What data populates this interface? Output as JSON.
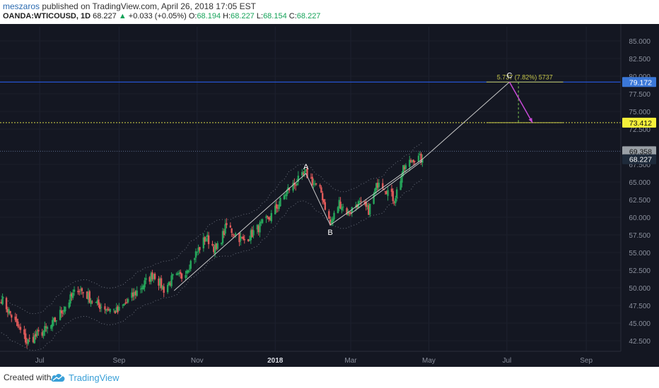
{
  "header": {
    "author": "meszaros",
    "published_text": "published on TradingView.com, April 26, 2018 17:05 EST",
    "symbol": "OANDA:WTICOUSD, 1D",
    "last": "68.227",
    "change_arrow": "▲",
    "change": "+0.033 (+0.05%)",
    "o_label": "O:",
    "o_value": "68.194",
    "h_label": "H:",
    "h_value": "68.227",
    "l_label": "L:",
    "l_value": "68.154",
    "c_label": "C:",
    "c_value": "68.227"
  },
  "footer": {
    "created_with": "Created with",
    "brand": "TradingView",
    "brand_icon": "tradingview-cloud-icon"
  },
  "chart_data": {
    "type": "candlestick",
    "y_axis": {
      "range": [
        41.0,
        87.0
      ],
      "ticks": [
        42.5,
        45.0,
        47.5,
        50.0,
        52.5,
        55.0,
        57.5,
        60.0,
        62.5,
        65.0,
        67.5,
        72.5,
        75.0,
        77.5,
        80.0,
        82.5,
        85.0
      ],
      "tick_labels": [
        "42.500",
        "45.000",
        "47.500",
        "50.000",
        "52.500",
        "55.000",
        "57.500",
        "60.000",
        "62.500",
        "65.000",
        "67.500",
        "72.500",
        "75.000",
        "77.500",
        "80.000",
        "82.500",
        "85.000"
      ]
    },
    "x_axis": {
      "range": [
        "2018-05-31",
        "2018-09-28"
      ],
      "labels": [
        {
          "date": "2017-07-01",
          "text": "Jul",
          "bold": false
        },
        {
          "date": "2017-09-01",
          "text": "Sep",
          "bold": false
        },
        {
          "date": "2017-11-01",
          "text": "Nov",
          "bold": false
        },
        {
          "date": "2018-01-01",
          "text": "2018",
          "bold": true
        },
        {
          "date": "2018-03-01",
          "text": "Mar",
          "bold": false
        },
        {
          "date": "2018-05-01",
          "text": "May",
          "bold": false
        },
        {
          "date": "2018-07-01",
          "text": "Jul",
          "bold": false
        },
        {
          "date": "2018-09-01",
          "text": "Sep",
          "bold": false
        }
      ]
    },
    "price_path": [
      [
        "2017-06-01",
        48.5
      ],
      [
        "2017-06-21",
        42.3
      ],
      [
        "2017-07-10",
        44.6
      ],
      [
        "2017-07-31",
        50.0
      ],
      [
        "2017-08-15",
        47.6
      ],
      [
        "2017-08-31",
        46.6
      ],
      [
        "2017-09-28",
        52.0
      ],
      [
        "2017-10-06",
        49.8
      ],
      [
        "2017-10-13",
        51.4
      ],
      [
        "2017-10-20",
        51.6
      ],
      [
        "2017-11-08",
        57.2
      ],
      [
        "2017-11-16",
        55.3
      ],
      [
        "2017-11-24",
        58.8
      ],
      [
        "2017-12-07",
        56.6
      ],
      [
        "2017-12-28",
        60.0
      ],
      [
        "2018-01-11",
        63.9
      ],
      [
        "2018-01-25",
        66.2
      ],
      [
        "2018-02-06",
        63.5
      ],
      [
        "2018-02-13",
        58.9
      ],
      [
        "2018-02-20",
        62.1
      ],
      [
        "2018-02-27",
        60.6
      ],
      [
        "2018-03-06",
        62.0
      ],
      [
        "2018-03-15",
        61.0
      ],
      [
        "2018-03-23",
        65.4
      ],
      [
        "2018-04-04",
        62.5
      ],
      [
        "2018-04-11",
        66.7
      ],
      [
        "2018-04-19",
        68.4
      ],
      [
        "2018-04-26",
        68.23
      ]
    ],
    "annotations": [
      {
        "label": "A",
        "date": "2018-01-25",
        "price": 66.2
      },
      {
        "label": "B",
        "date": "2018-02-13",
        "price": 58.9
      },
      {
        "label": "C",
        "date": "2018-07-03",
        "price": 79.17
      }
    ],
    "projection": {
      "text": "5.737 (7.82%) 5737",
      "from": [
        "2018-04-26",
        68.23
      ],
      "to": [
        "2018-07-03",
        79.17
      ],
      "retrace_to": [
        "2018-07-21",
        73.41
      ]
    },
    "price_lines": [
      {
        "price": 79.172,
        "label": "79.172",
        "color": "#2962ff",
        "label_bg": "#3b78d8",
        "label_fg": "#ffffff"
      },
      {
        "price": 73.412,
        "label": "73.412",
        "color": "#d8d84a",
        "label_bg": "#f5f03a",
        "label_fg": "#111111"
      },
      {
        "price": 69.358,
        "label": "69.358",
        "color": "#5a6a8a",
        "label_bg": "#9aa0a6",
        "label_fg": "#111111"
      }
    ],
    "last_price": {
      "price": 68.227,
      "label": "68.227",
      "label_bg": "#1e2a3a",
      "label_fg": "#ffffff"
    },
    "colors": {
      "background": "#141722",
      "candle_up": "#26a65b",
      "candle_down": "#e05a5a",
      "trendline": "#c8c8c8",
      "arrow": "#c84ad8",
      "dashed_vertical": "#7cc850"
    }
  }
}
